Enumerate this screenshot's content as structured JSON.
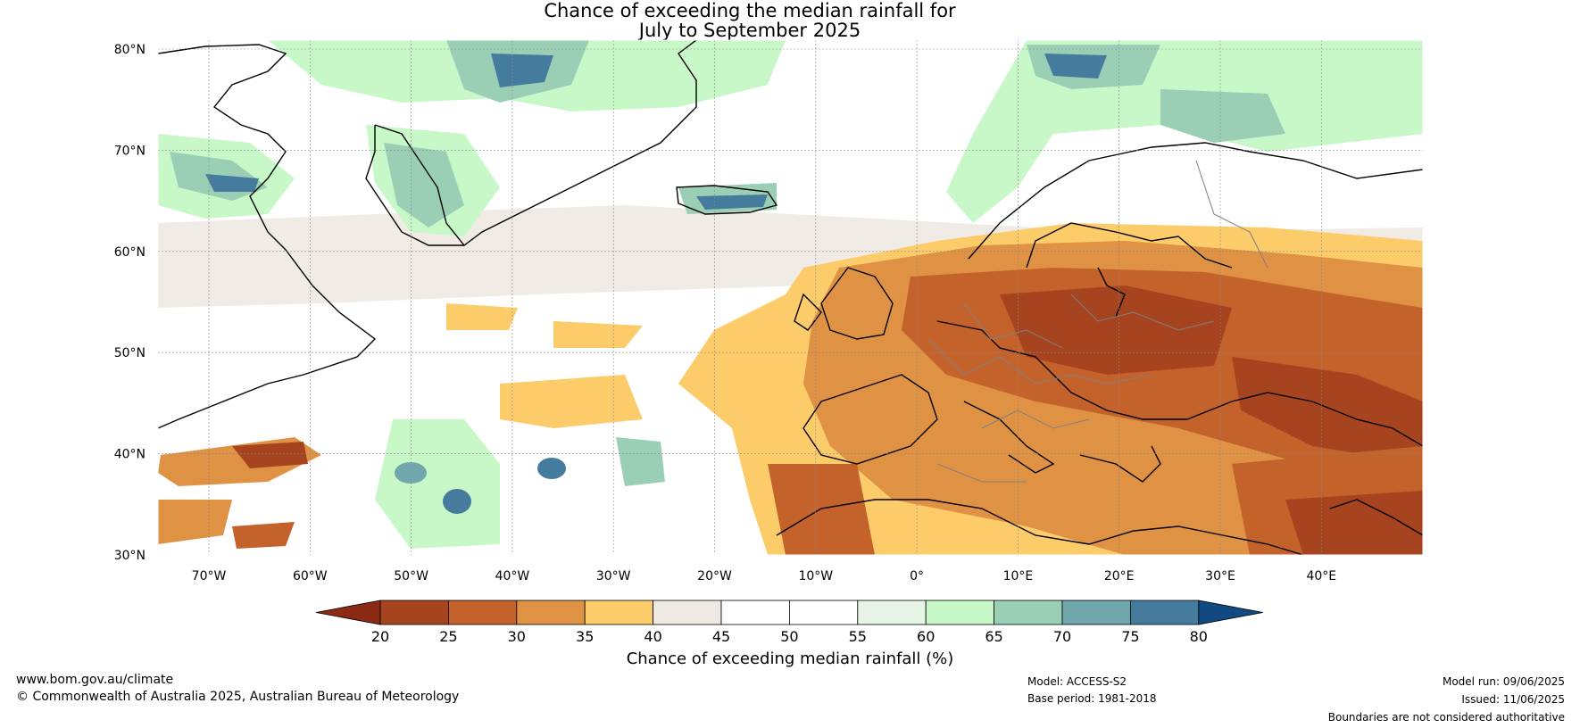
{
  "title_line1": "Chance of exceeding the median rainfall for",
  "title_line2": "July to September 2025",
  "lat_ticks": [
    "80°N",
    "70°N",
    "60°N",
    "50°N",
    "40°N",
    "30°N"
  ],
  "lon_ticks": [
    "70°W",
    "60°W",
    "50°W",
    "40°W",
    "30°W",
    "20°W",
    "10°W",
    "0°",
    "10°E",
    "20°E",
    "30°E",
    "40°E"
  ],
  "colorbar": {
    "label": "Chance of exceeding median rainfall (%)",
    "ticks": [
      "20",
      "25",
      "30",
      "35",
      "40",
      "45",
      "50",
      "55",
      "60",
      "65",
      "70",
      "75",
      "80"
    ],
    "low_extend_color": "#8a2a14",
    "high_extend_color": "#114a82",
    "bin_colors": [
      "#a6441f",
      "#c4622c",
      "#df9244",
      "#fdcc6a",
      "#efe9e3",
      "#ffffff",
      "#ffffff",
      "#e6f5e6",
      "#c8f7c8",
      "#9acfb6",
      "#6fa7ad",
      "#457c9e"
    ]
  },
  "footer": {
    "website": "www.bom.gov.au/climate",
    "copyright": "© Commonwealth of Australia 2025, Australian Bureau of Meteorology",
    "model": "Model: ACCESS-S2",
    "base_period": "Base period: 1981-2018",
    "model_run": "Model run: 09/06/2025",
    "issued": "Issued: 11/06/2025",
    "disclaimer": "Boundaries are not considered authoritative"
  }
}
